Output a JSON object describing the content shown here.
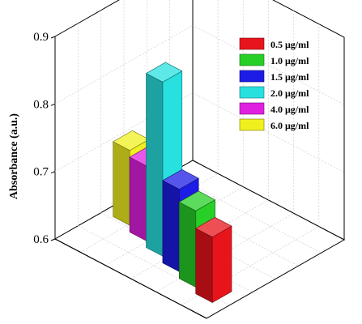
{
  "chart_data": {
    "type": "bar",
    "variant": "3d",
    "ylabel": "Absorbance (a.u.)",
    "ylim": [
      0.6,
      0.9
    ],
    "yticks": [
      "0.6",
      "0.7",
      "0.8",
      "0.9"
    ],
    "grid": true,
    "legend_position": "top-right",
    "series": [
      {
        "name": "0.5 μg/ml",
        "value": 0.697,
        "color": "#e8141c"
      },
      {
        "name": "1.0 μg/ml",
        "value": 0.713,
        "color": "#27cf27"
      },
      {
        "name": "1.5 μg/ml",
        "value": 0.722,
        "color": "#1c1ce6"
      },
      {
        "name": "2.0 μg/ml",
        "value": 0.858,
        "color": "#29e0e0"
      },
      {
        "name": "4.0 μg/ml",
        "value": 0.711,
        "color": "#e020e0"
      },
      {
        "name": "6.0 μg/ml",
        "value": 0.711,
        "color": "#f0f020"
      }
    ]
  }
}
